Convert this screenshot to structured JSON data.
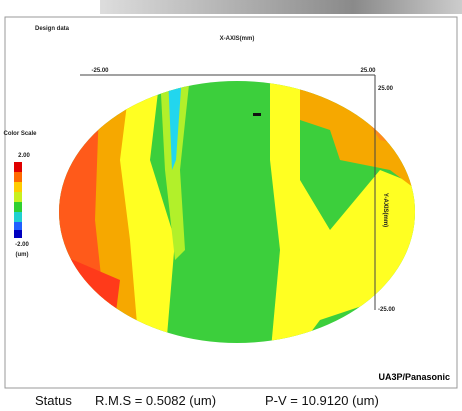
{
  "header": {
    "title": "Design data",
    "x_axis_label": "X-AXIS(mm)",
    "y_axis_label": "Y-AXIS(mm)",
    "brand": "UA3P/Panasonic"
  },
  "axes": {
    "x_min": "-25.00",
    "x_max": "25.00",
    "y_max": "25.00",
    "y_min": "-25.00"
  },
  "color_scale": {
    "title": "Color Scale",
    "max": "2.00",
    "min": "-2.00",
    "unit": "(um)"
  },
  "status": {
    "label": "Status",
    "rms": "R.M.S = 0.5082 (um)",
    "pv": "P-V = 10.9120 (um)"
  }
}
